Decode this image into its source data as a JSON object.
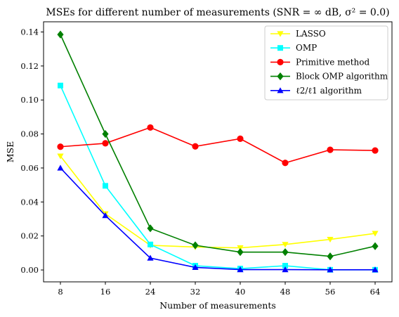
{
  "chart_data": {
    "type": "line",
    "title": "MSEs for different number of measurements (SNR = ∞ dB, σ² = 0.0)",
    "xlabel": "Number of measurements",
    "ylabel": "MSE",
    "x": [
      8,
      16,
      24,
      32,
      40,
      48,
      56,
      64
    ],
    "x_ticks": [
      "8",
      "16",
      "24",
      "32",
      "40",
      "48",
      "56",
      "64"
    ],
    "y_ticks": [
      "0.00",
      "0.02",
      "0.04",
      "0.06",
      "0.08",
      "0.10",
      "0.12",
      "0.14"
    ],
    "xlim": [
      5,
      67
    ],
    "ylim": [
      -0.007,
      0.146
    ],
    "grid": false,
    "legend_position": "top-right",
    "series": [
      {
        "name": "LASSO",
        "color": "#ffff00",
        "marker": "triangle-down",
        "values": [
          0.067,
          0.033,
          0.0145,
          0.0135,
          0.013,
          0.015,
          0.018,
          0.0215
        ]
      },
      {
        "name": "OMP",
        "color": "#00ffff",
        "marker": "square",
        "values": [
          0.1085,
          0.0495,
          0.015,
          0.0025,
          0.0008,
          0.0025,
          0.0001,
          0.0001
        ]
      },
      {
        "name": "Primitive method",
        "color": "#ff0000",
        "marker": "circle",
        "values": [
          0.0725,
          0.0745,
          0.0838,
          0.0727,
          0.0772,
          0.063,
          0.0707,
          0.0703
        ]
      },
      {
        "name": "Block OMP algorithm",
        "color": "#008000",
        "marker": "diamond",
        "values": [
          0.1385,
          0.08,
          0.0245,
          0.0145,
          0.0105,
          0.0105,
          0.008,
          0.014
        ]
      },
      {
        "name": "ℓ2/ℓ1 algorithm",
        "color": "#0000ff",
        "marker": "triangle-up",
        "values": [
          0.06,
          0.032,
          0.007,
          0.0015,
          0.0002,
          0.0002,
          0.0001,
          0.0001
        ]
      }
    ]
  }
}
